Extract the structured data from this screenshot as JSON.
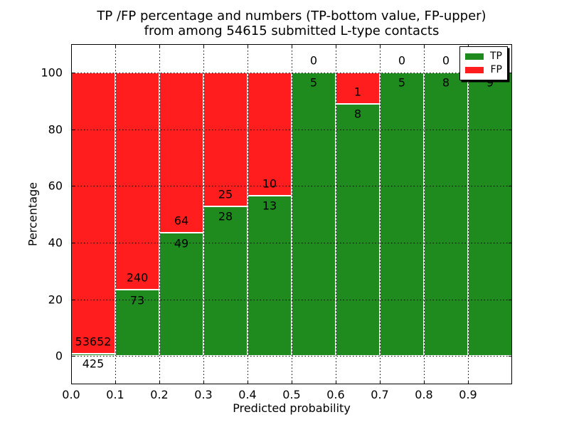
{
  "chart_data": {
    "type": "bar",
    "stacked": true,
    "title_line1": "TP /FP percentage and numbers (TP-bottom value, FP-upper)",
    "title_line2": "from among 54615 submitted L-type contacts",
    "xlabel": "Predicted probability",
    "ylabel": "Percentage",
    "xlim": [
      0.0,
      1.0
    ],
    "ylim": [
      -10,
      110
    ],
    "grid": true,
    "x_ticks": [
      0.0,
      0.1,
      0.2,
      0.3,
      0.4,
      0.5,
      0.6,
      0.7,
      0.8,
      0.9
    ],
    "x_tick_labels": [
      "0.0",
      "0.1",
      "0.2",
      "0.3",
      "0.4",
      "0.5",
      "0.6",
      "0.7",
      "0.8",
      "0.9"
    ],
    "y_ticks": [
      0,
      20,
      40,
      60,
      80,
      100
    ],
    "y_tick_labels": [
      "0",
      "20",
      "40",
      "60",
      "80",
      "100"
    ],
    "legend": {
      "position": "upper-right",
      "entries": [
        {
          "label": "TP",
          "color": "#1f8b1f"
        },
        {
          "label": "FP",
          "color": "#ff1d1d"
        }
      ]
    },
    "colors": {
      "tp": "#1f8b1f",
      "fp": "#ff1d1d",
      "edge": "#ffffff",
      "grid": "#000000",
      "text": "#000000"
    },
    "series_note": "each bar: TP count (bottom label) and FP count (upper label); bar heights are percentages TP/(TP+FP) and FP/(TP+FP) stacked to 100%",
    "bars": [
      {
        "x0": 0.0,
        "x1": 0.1,
        "tp": 425,
        "fp": 53652
      },
      {
        "x0": 0.1,
        "x1": 0.2,
        "tp": 73,
        "fp": 240
      },
      {
        "x0": 0.2,
        "x1": 0.3,
        "tp": 49,
        "fp": 64
      },
      {
        "x0": 0.3,
        "x1": 0.4,
        "tp": 28,
        "fp": 25
      },
      {
        "x0": 0.4,
        "x1": 0.5,
        "tp": 13,
        "fp": 10
      },
      {
        "x0": 0.5,
        "x1": 0.6,
        "tp": 5,
        "fp": 0
      },
      {
        "x0": 0.6,
        "x1": 0.7,
        "tp": 8,
        "fp": 1
      },
      {
        "x0": 0.7,
        "x1": 0.8,
        "tp": 5,
        "fp": 0
      },
      {
        "x0": 0.8,
        "x1": 0.9,
        "tp": 8,
        "fp": 0
      },
      {
        "x0": 0.9,
        "x1": 1.0,
        "tp": 9,
        "fp": 0
      }
    ]
  }
}
